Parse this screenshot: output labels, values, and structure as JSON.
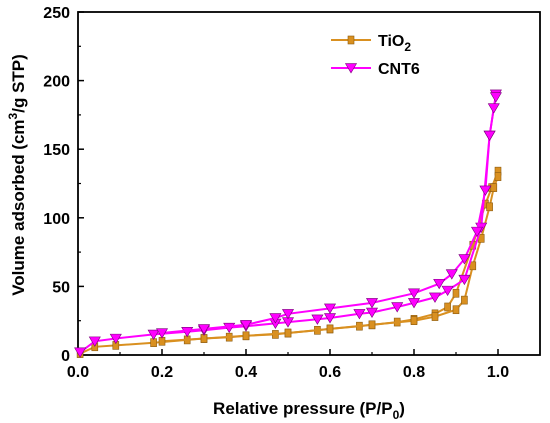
{
  "chart_data": {
    "type": "line",
    "xlabel": "Relative pressure (P/P0)",
    "xlabel_parts": {
      "main": "Relative pressure (P/P",
      "sub": "0",
      "end": ")"
    },
    "ylabel": "Volume adsorbed (cm3/g STP)",
    "ylabel_parts": {
      "main": "Volume adsorbed (cm",
      "sup": "3",
      "end": "/g STP)"
    },
    "xlim": [
      0.0,
      1.1
    ],
    "ylim": [
      0,
      250
    ],
    "xticks": [
      "0.0",
      "0.2",
      "0.4",
      "0.6",
      "0.8",
      "1.0"
    ],
    "yticks": [
      "0",
      "50",
      "100",
      "150",
      "200",
      "250"
    ],
    "legend_position": "top-right",
    "grid": false,
    "series": [
      {
        "name": "TiO2",
        "name_parts": {
          "main": "TiO",
          "sub": "2"
        },
        "color": "#d99020",
        "marker": "square",
        "adsorption": [
          [
            0.005,
            1
          ],
          [
            0.04,
            6
          ],
          [
            0.09,
            7
          ],
          [
            0.18,
            9
          ],
          [
            0.26,
            11
          ],
          [
            0.3,
            12
          ],
          [
            0.36,
            13
          ],
          [
            0.4,
            14
          ],
          [
            0.47,
            15
          ],
          [
            0.5,
            16
          ],
          [
            0.57,
            18
          ],
          [
            0.6,
            19
          ],
          [
            0.67,
            21
          ],
          [
            0.7,
            22
          ],
          [
            0.76,
            24
          ],
          [
            0.8,
            26
          ],
          [
            0.85,
            30
          ],
          [
            0.88,
            35
          ],
          [
            0.9,
            45
          ],
          [
            0.94,
            80
          ],
          [
            0.97,
            110
          ],
          [
            0.985,
            122
          ],
          [
            1.0,
            134
          ]
        ],
        "desorption": [
          [
            1.0,
            130
          ],
          [
            0.99,
            122
          ],
          [
            0.98,
            108
          ],
          [
            0.96,
            85
          ],
          [
            0.94,
            65
          ],
          [
            0.92,
            40
          ],
          [
            0.9,
            33
          ],
          [
            0.85,
            28
          ],
          [
            0.8,
            25
          ],
          [
            0.7,
            22
          ],
          [
            0.6,
            19
          ],
          [
            0.5,
            16
          ],
          [
            0.4,
            14
          ],
          [
            0.3,
            12
          ],
          [
            0.2,
            10
          ]
        ]
      },
      {
        "name": "CNT6",
        "color": "#ff00ff",
        "marker": "triangle-down",
        "adsorption": [
          [
            0.005,
            2
          ],
          [
            0.04,
            10
          ],
          [
            0.09,
            12
          ],
          [
            0.18,
            15
          ],
          [
            0.26,
            17
          ],
          [
            0.3,
            18
          ],
          [
            0.36,
            20
          ],
          [
            0.4,
            21
          ],
          [
            0.47,
            23
          ],
          [
            0.5,
            24
          ],
          [
            0.57,
            26
          ],
          [
            0.6,
            27
          ],
          [
            0.67,
            30
          ],
          [
            0.7,
            31
          ],
          [
            0.76,
            35
          ],
          [
            0.8,
            38
          ],
          [
            0.85,
            42
          ],
          [
            0.88,
            47
          ],
          [
            0.92,
            55
          ],
          [
            0.96,
            93
          ],
          [
            0.98,
            160
          ],
          [
            0.995,
            190
          ]
        ],
        "desorption": [
          [
            0.995,
            188
          ],
          [
            0.99,
            180
          ],
          [
            0.98,
            160
          ],
          [
            0.97,
            120
          ],
          [
            0.95,
            90
          ],
          [
            0.92,
            70
          ],
          [
            0.89,
            59
          ],
          [
            0.86,
            52
          ],
          [
            0.8,
            45
          ],
          [
            0.7,
            38
          ],
          [
            0.6,
            34
          ],
          [
            0.5,
            30
          ],
          [
            0.47,
            27
          ],
          [
            0.4,
            22
          ],
          [
            0.3,
            19
          ],
          [
            0.2,
            16
          ]
        ]
      }
    ]
  }
}
